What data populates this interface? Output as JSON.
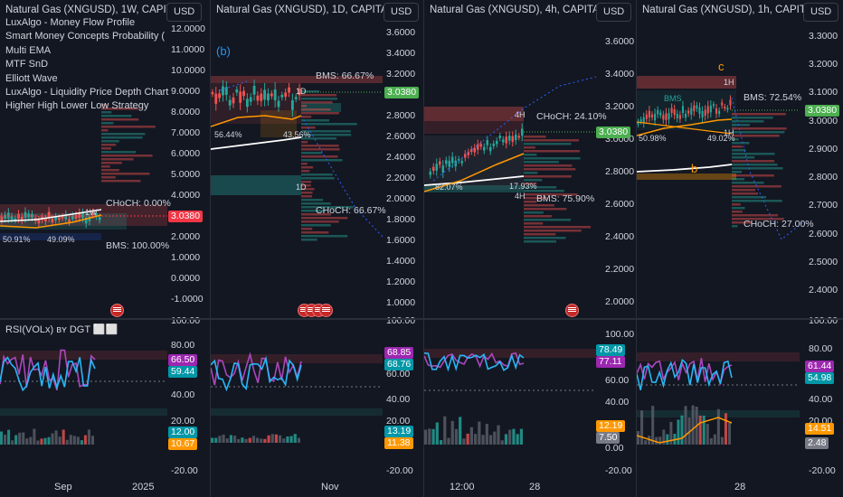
{
  "panels": [
    {
      "id": "weekly",
      "title": "Natural Gas (XNGUSD), 1W, CAPITA",
      "currency": "USD",
      "indicators": [
        "LuxAlgo - Money Flow Profile",
        "Smart Money Concepts Probability (",
        "Multi EMA",
        "MTF SnD",
        "Elliott Wave",
        "LuxAlgo - Liquidity Price Depth Chart",
        "Higher High Lower Low Strategy"
      ],
      "price_ticks": [
        "12.0000",
        "11.0000",
        "10.0000",
        "9.0000",
        "8.0000",
        "7.0000",
        "6.0000",
        "5.0000",
        "4.0000",
        "3.0000",
        "2.0000",
        "1.0000",
        "0.0000",
        "-1.0000"
      ],
      "last_price": "3.0380",
      "labels": [
        "CHoCH: 0.00%",
        "BMS: 100.00%",
        "50.91%",
        "49.09%",
        "1W"
      ],
      "rsi_title": "RSI(VOLx) ʙʏ DGT ⬜⬜",
      "rsi_ticks": [
        "100.00",
        "80.00",
        "60.00",
        "40.00",
        "20.00",
        "0.00",
        "-20.00"
      ],
      "rsi_badges": [
        "66.50",
        "59.44",
        "12.00",
        "10.67"
      ],
      "x_ticks": [
        "Sep",
        "2025"
      ]
    },
    {
      "id": "daily",
      "title": "Natural Gas (XNGUSD), 1D, CAPITALC",
      "currency": "USD",
      "annotation": "(b)",
      "price_ticks": [
        "3.6000",
        "3.4000",
        "3.2000",
        "3.0000",
        "2.8000",
        "2.6000",
        "2.4000",
        "2.2000",
        "2.0000",
        "1.8000",
        "1.6000",
        "1.4000",
        "1.2000",
        "1.0000"
      ],
      "last_price": "3.0380",
      "labels": [
        "BMS: 66.67%",
        "56.44%",
        "43.56%",
        "CHoCH: 66.67%",
        "1D",
        "1D"
      ],
      "rsi_ticks": [
        "100.00",
        "80.00",
        "60.00",
        "40.00",
        "20.00",
        "0.00",
        "-20.00"
      ],
      "rsi_badges": [
        "68.85",
        "68.76",
        "13.19",
        "11.38"
      ],
      "x_ticks": [
        "Nov"
      ]
    },
    {
      "id": "h4",
      "title": "Natural Gas (XNGUSD), 4h, CAPITALC",
      "currency": "USD",
      "price_ticks": [
        "3.6000",
        "3.4000",
        "3.2000",
        "3.0000",
        "2.8000",
        "2.6000",
        "2.4000",
        "2.2000",
        "2.0000"
      ],
      "last_price": "3.0380",
      "labels": [
        "CHoCH: 24.10%",
        "BMS: 75.90%",
        "82.07%",
        "17.93%",
        "4H",
        "4H"
      ],
      "rsi_ticks": [
        "100.00",
        "80.00",
        "60.00",
        "40.00",
        "20.00",
        "0.00",
        "-20.00"
      ],
      "rsi_badges": [
        "78.49",
        "77.11",
        "12.19",
        "7.50"
      ],
      "x_ticks": [
        "12:00",
        "28"
      ]
    },
    {
      "id": "h1",
      "title": "Natural Gas (XNGUSD), 1h, CAPITALC",
      "currency": "USD",
      "annotations": [
        "c",
        "b"
      ],
      "price_ticks": [
        "3.3000",
        "3.2000",
        "3.1000",
        "3.0000",
        "2.9000",
        "2.8000",
        "2.7000",
        "2.6000",
        "2.5000",
        "2.4000"
      ],
      "last_price": "3.0380",
      "labels": [
        "BMS: 72.54%",
        "CHoCH: 27.00%",
        "BMS",
        "50.98%",
        "49.02%",
        "1H",
        "1H"
      ],
      "rsi_ticks": [
        "100.00",
        "80.00",
        "60.00",
        "40.00",
        "20.00",
        "0.00",
        "-20.00"
      ],
      "rsi_badges": [
        "61.44",
        "54.98",
        "14.51",
        "2.48"
      ],
      "x_ticks": [
        "28"
      ]
    }
  ],
  "colors": {
    "background": "#131722",
    "up": "#26a69a",
    "down": "#ef5350",
    "rsi_line": "#ab47bc",
    "rsi_signal": "#29b6f6",
    "ema_orange": "#ff9800",
    "ema_white": "#ffffff",
    "price_badge_green": "#4caf50",
    "price_badge_red": "#f23645"
  },
  "chart_data": [
    {
      "type": "line",
      "title": "Natural Gas (XNGUSD), 1W, CAPITA",
      "ylim": [
        -1,
        12
      ],
      "last": 3.038,
      "rsi": [
        66.5,
        59.44
      ],
      "volume_rsi": [
        12.0,
        10.67
      ]
    },
    {
      "type": "line",
      "title": "Natural Gas (XNGUSD), 1D, CAPITALC",
      "ylim": [
        1.0,
        3.6
      ],
      "last": 3.038,
      "rsi": [
        68.85,
        68.76
      ],
      "volume_rsi": [
        13.19,
        11.38
      ]
    },
    {
      "type": "line",
      "title": "Natural Gas (XNGUSD), 4h, CAPITALC",
      "ylim": [
        2.0,
        3.6
      ],
      "last": 3.038,
      "rsi": [
        78.49,
        77.11
      ],
      "volume_rsi": [
        12.19,
        7.5
      ]
    },
    {
      "type": "line",
      "title": "Natural Gas (XNGUSD), 1h, CAPITALC",
      "ylim": [
        2.4,
        3.3
      ],
      "last": 3.038,
      "rsi": [
        61.44,
        54.98
      ],
      "volume_rsi": [
        14.51,
        2.48
      ]
    }
  ]
}
